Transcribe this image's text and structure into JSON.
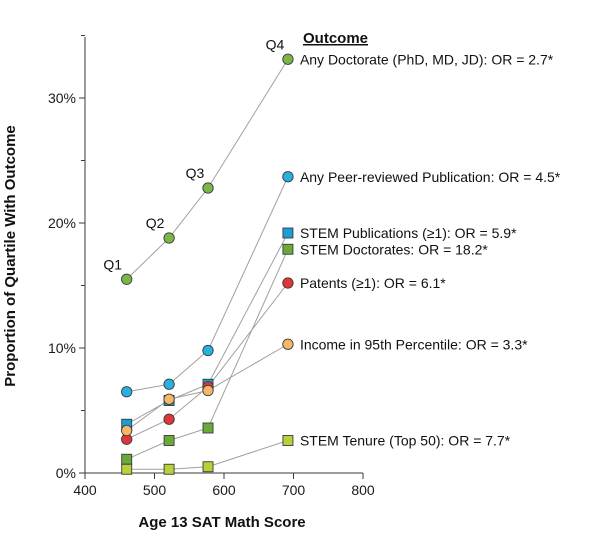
{
  "chart_data": {
    "type": "scatter",
    "xlabel": "Age 13 SAT Math Score",
    "ylabel": "Proportion of Quartile With Outcome",
    "xlim": [
      400,
      800
    ],
    "ylim": [
      0,
      35
    ],
    "x_ticks": [
      {
        "value": 400,
        "label": "400"
      },
      {
        "value": 500,
        "label": "500"
      },
      {
        "value": 600,
        "label": "600"
      },
      {
        "value": 700,
        "label": "700"
      },
      {
        "value": 800,
        "label": "800"
      }
    ],
    "y_ticks": [
      {
        "value": 0,
        "label": "0%"
      },
      {
        "value": 10,
        "label": "10%"
      },
      {
        "value": 20,
        "label": "20%"
      },
      {
        "value": 30,
        "label": "30%"
      }
    ],
    "legend_title": "Outcome",
    "quartile_labels": [
      "Q1",
      "Q2",
      "Q3",
      "Q4"
    ],
    "series": [
      {
        "name": "Any Doctorate  (PhD, MD, JD): OR = 2.7*",
        "marker": "circle",
        "color": "#7ab648",
        "x": [
          460,
          521,
          577,
          692
        ],
        "y": [
          15.5,
          18.8,
          22.8,
          33.1
        ]
      },
      {
        "name": "Any Peer-reviewed Publication: OR = 4.5*",
        "marker": "circle",
        "color": "#2ab0e0",
        "x": [
          460,
          521,
          577,
          692
        ],
        "y": [
          6.5,
          7.1,
          9.8,
          23.7
        ]
      },
      {
        "name": "STEM Publications (≥1): OR = 5.9*",
        "marker": "square",
        "color": "#1a9ed6",
        "x": [
          460,
          521,
          577,
          692
        ],
        "y": [
          3.9,
          5.8,
          7.1,
          19.2
        ]
      },
      {
        "name": "STEM Doctorates: OR = 18.2*",
        "marker": "square",
        "color": "#6aaa3a",
        "x": [
          460,
          521,
          577,
          692
        ],
        "y": [
          1.1,
          2.6,
          3.6,
          17.9
        ]
      },
      {
        "name": "Patents (≥1): OR = 6.1*",
        "marker": "circle",
        "color": "#e0353b",
        "x": [
          460,
          521,
          577,
          692
        ],
        "y": [
          2.7,
          4.3,
          6.9,
          15.2
        ]
      },
      {
        "name": "Income in 95th Percentile: OR = 3.3*",
        "marker": "circle",
        "color": "#f6b866",
        "x": [
          460,
          521,
          577,
          692
        ],
        "y": [
          3.4,
          5.9,
          6.6,
          10.3
        ]
      },
      {
        "name": "STEM Tenure (Top 50): OR = 7.7*",
        "marker": "square",
        "color": "#b7d13a",
        "x": [
          460,
          521,
          577,
          692
        ],
        "y": [
          0.3,
          0.3,
          0.5,
          2.6
        ]
      }
    ]
  }
}
